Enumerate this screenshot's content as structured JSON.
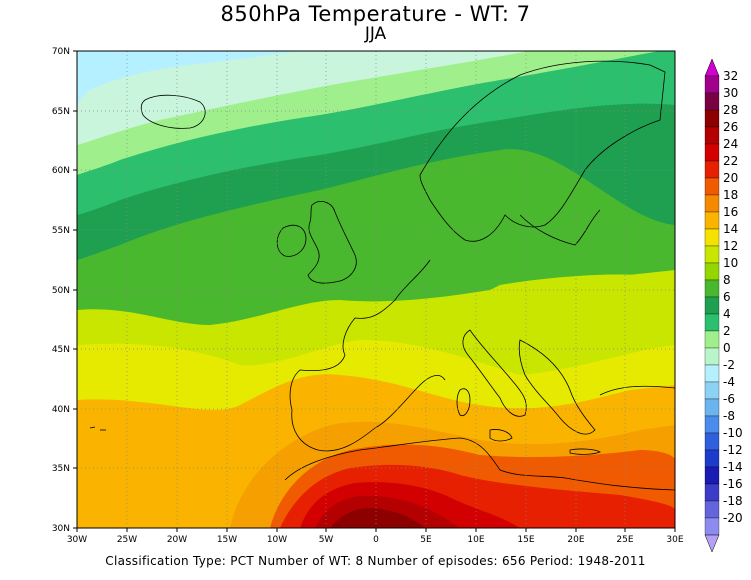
{
  "title": "850hPa Temperature - WT: 7",
  "subtitle": "JJA",
  "footer": "Classification Type: PCT Number of WT: 8 Number of episodes: 656 Period: 1948-2011",
  "map": {
    "region": "Europe / North Atlantic / North Africa",
    "variable": "850hPa Temperature",
    "lon_range": [
      -30,
      30
    ],
    "lat_range": [
      30,
      70
    ],
    "lon_ticks": [
      "30W",
      "25W",
      "20W",
      "15W",
      "10W",
      "5W",
      "0",
      "5E",
      "10E",
      "15E",
      "20E",
      "25E",
      "30E"
    ],
    "lat_ticks": [
      "30N",
      "35N",
      "40N",
      "45N",
      "50N",
      "55N",
      "60N",
      "65N",
      "70N"
    ],
    "grid": "dotted"
  },
  "colorbar": {
    "labels": [
      "32",
      "30",
      "28",
      "26",
      "24",
      "22",
      "20",
      "18",
      "16",
      "14",
      "12",
      "10",
      "8",
      "6",
      "4",
      "2",
      "0",
      "-2",
      "-4",
      "-6",
      "-8",
      "-10",
      "-12",
      "-14",
      "-16",
      "-18",
      "-20"
    ],
    "colors": [
      "#d100d1",
      "#a0008c",
      "#7a0044",
      "#8c0000",
      "#b40000",
      "#d20000",
      "#e62000",
      "#f05a00",
      "#f58a00",
      "#fab400",
      "#f5e200",
      "#c8e600",
      "#94d600",
      "#4ab82e",
      "#1ea050",
      "#2cbf6e",
      "#9ff08c",
      "#b9f5c8",
      "#b4f0ff",
      "#8cd2f5",
      "#6cb4f0",
      "#4a8ceb",
      "#2e5fdc",
      "#1e3ccc",
      "#1a1ab4",
      "#3c3cc8",
      "#6464dc",
      "#8c8cf0",
      "#b4a0f5"
    ]
  }
}
